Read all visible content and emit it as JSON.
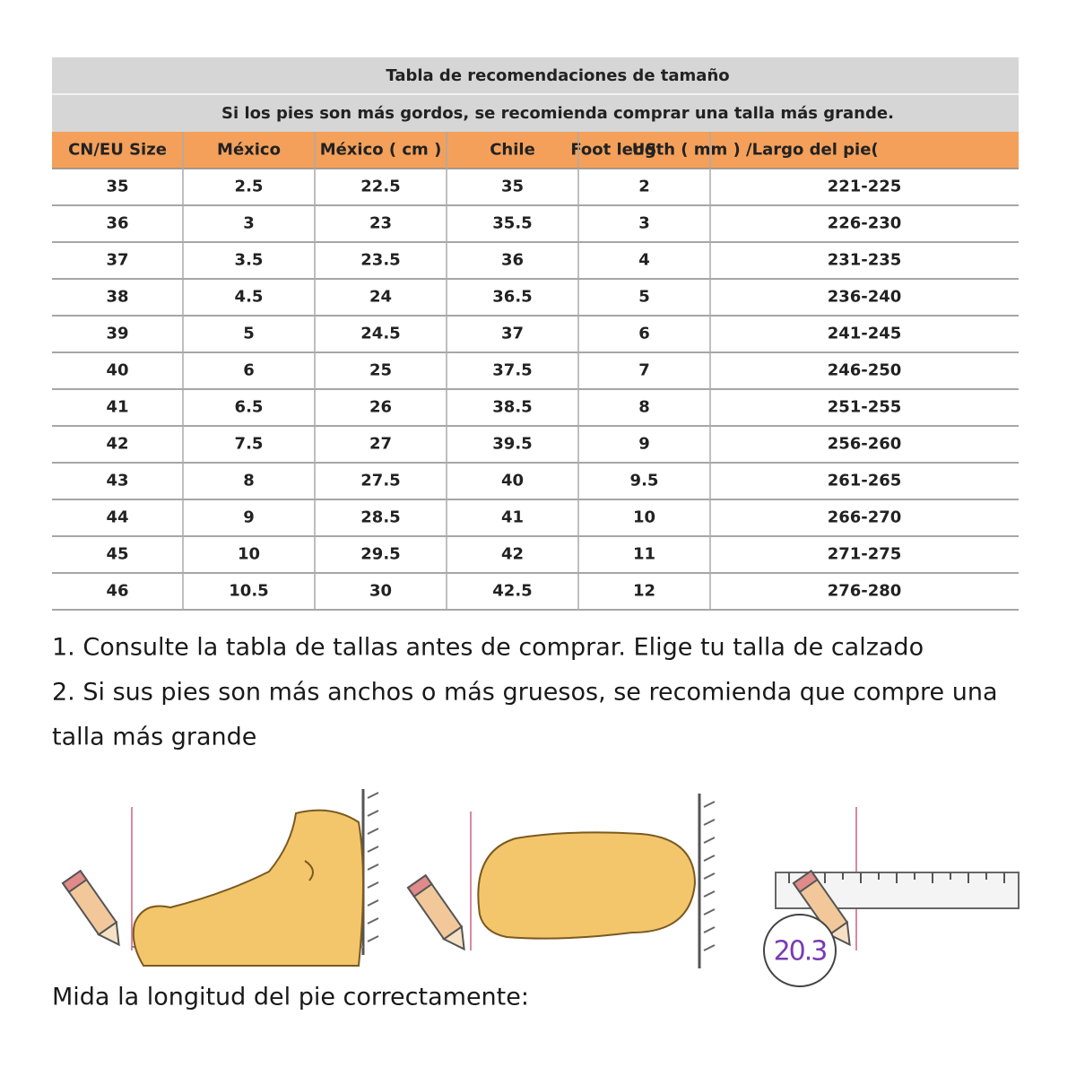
{
  "table": {
    "title": "Tabla de recomendaciones de tamaño",
    "subtitle": "Si los pies son más gordos, se recomienda comprar una talla más grande.",
    "header": [
      "CN/EU Size",
      "México",
      "México ( cm )",
      "Chile",
      "US",
      "Foot length ( mm ) /Largo del pie("
    ],
    "rows": [
      [
        "35",
        "2.5",
        "22.5",
        "35",
        "2",
        "221-225"
      ],
      [
        "36",
        "3",
        "23",
        "35.5",
        "3",
        "226-230"
      ],
      [
        "37",
        "3.5",
        "23.5",
        "36",
        "4",
        "231-235"
      ],
      [
        "38",
        "4.5",
        "24",
        "36.5",
        "5",
        "236-240"
      ],
      [
        "39",
        "5",
        "24.5",
        "37",
        "6",
        "241-245"
      ],
      [
        "40",
        "6",
        "25",
        "37.5",
        "7",
        "246-250"
      ],
      [
        "41",
        "6.5",
        "26",
        "38.5",
        "8",
        "251-255"
      ],
      [
        "42",
        "7.5",
        "27",
        "39.5",
        "9",
        "256-260"
      ],
      [
        "43",
        "8",
        "27.5",
        "40",
        "9.5",
        "261-265"
      ],
      [
        "44",
        "9",
        "28.5",
        "41",
        "10",
        "266-270"
      ],
      [
        "45",
        "10",
        "29.5",
        "42",
        "11",
        "271-275"
      ],
      [
        "46",
        "10.5",
        "30",
        "42.5",
        "12",
        "276-280"
      ]
    ]
  },
  "notes": [
    "1. Consulte la tabla de tallas antes de comprar. Elige tu talla de calzado",
    "2. Si sus pies son más anchos o más gruesos, se recomienda que compre una",
    "talla más grande"
  ],
  "illustration": {
    "measurement": "20.3"
  },
  "caption": "Mida la longitud del pie correctamente:"
}
